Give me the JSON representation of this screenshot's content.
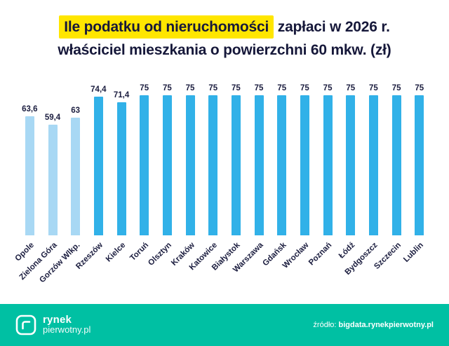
{
  "title": {
    "highlight": "Ile podatku od nieruchomości",
    "rest": " zapłaci w 2026 r.",
    "line2": "właściciel mieszkania o powierzchni 60 mkw. (zł)",
    "highlight_color": "#ffe600",
    "text_color": "#16183a"
  },
  "chart_data": {
    "type": "bar",
    "title": "Ile podatku od nieruchomości zapłaci w 2026 r. właściciel mieszkania o powierzchni 60 mkw. (zł)",
    "categories": [
      "Opole",
      "Zielona Góra",
      "Gorzów Wlkp.",
      "Rzeszów",
      "Kielce",
      "Toruń",
      "Olsztyn",
      "Kraków",
      "Katowice",
      "Białystok",
      "Warszawa",
      "Gdańsk",
      "Wrocław",
      "Poznań",
      "Łódź",
      "Bydgoszcz",
      "Szczecin",
      "Lublin"
    ],
    "values": [
      63.6,
      59.4,
      63,
      74.4,
      71.4,
      75,
      75,
      75,
      75,
      75,
      75,
      75,
      75,
      75,
      75,
      75,
      75,
      75
    ],
    "value_labels": [
      "63,6",
      "59,4",
      "63",
      "74,4",
      "71,4",
      "75",
      "75",
      "75",
      "75",
      "75",
      "75",
      "75",
      "75",
      "75",
      "75",
      "75",
      "75",
      "75"
    ],
    "bar_colors": [
      "#a8d8f4",
      "#a8d8f4",
      "#a8d8f4",
      "#31b1e8",
      "#31b1e8",
      "#31b1e8",
      "#31b1e8",
      "#31b1e8",
      "#31b1e8",
      "#31b1e8",
      "#31b1e8",
      "#31b1e8",
      "#31b1e8",
      "#31b1e8",
      "#31b1e8",
      "#31b1e8",
      "#31b1e8",
      "#31b1e8"
    ],
    "xlabel": "",
    "ylabel": "",
    "ylim": [
      0,
      75
    ],
    "grid": false,
    "legend": false,
    "value_labels_position": "above-bars",
    "category_labels_rotation": -45
  },
  "footer": {
    "bg_color": "#00c0a3",
    "logo_line1": "rynek",
    "logo_line2": "pierwotny.pl",
    "source_label": "źródło: ",
    "source_value": "bigdata.rynekpierwotny.pl"
  }
}
